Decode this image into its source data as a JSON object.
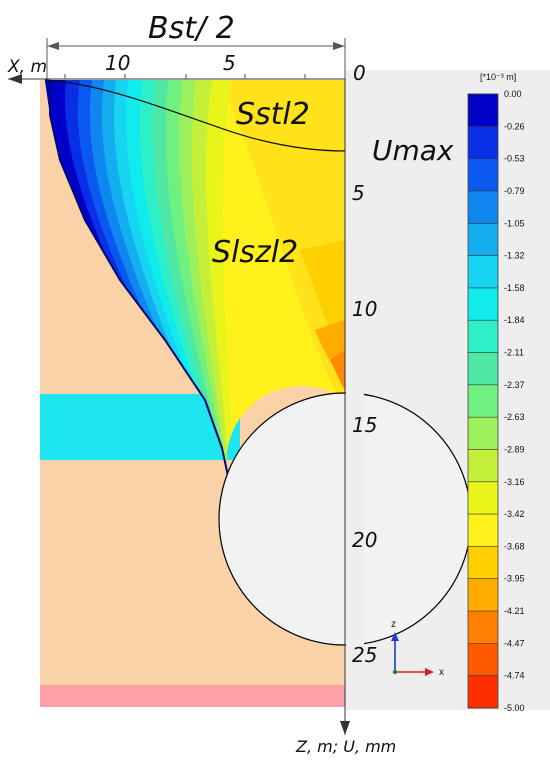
{
  "figure": {
    "width_label": "Bst/ 2",
    "x_axis_label": "X, m",
    "z_axis_label": "Z, m; U, mm",
    "umax_label": "Umax",
    "layer_top_label": "Sstl2",
    "layer_mid_label": "Slszl2",
    "x_ticks": [
      "10",
      "5",
      "0"
    ],
    "z_ticks": [
      "5",
      "10",
      "15",
      "20",
      "25"
    ]
  },
  "legend": {
    "unit": "[*10⁻³ m]",
    "values": [
      "0.00",
      "-0.26",
      "-0.53",
      "-0.79",
      "-1.05",
      "-1.32",
      "-1.58",
      "-1.84",
      "-2.11",
      "-2.37",
      "-2.63",
      "-2.89",
      "-3.16",
      "-3.42",
      "-3.68",
      "-3.95",
      "-4.21",
      "-4.47",
      "-4.74",
      "-5.00"
    ],
    "colors": [
      "#0000c8",
      "#0a2ee6",
      "#0b58f0",
      "#1086f0",
      "#14aef0",
      "#16d4f2",
      "#10ecec",
      "#2ef0c8",
      "#4ee8a4",
      "#70f080",
      "#9cf05c",
      "#c4f03a",
      "#e8f41a",
      "#fff21c",
      "#ffd000",
      "#ffab00",
      "#ff8000",
      "#ff5a00",
      "#ff2e00",
      "#ff0000"
    ]
  },
  "axes_gizmo": {
    "z": "z",
    "x": "x"
  },
  "colors": {
    "soil": "#fad2a8",
    "band_cyan": "#1ee6f0",
    "band_pink": "#ffa0a8",
    "right_panel": "#eeeeee"
  }
}
